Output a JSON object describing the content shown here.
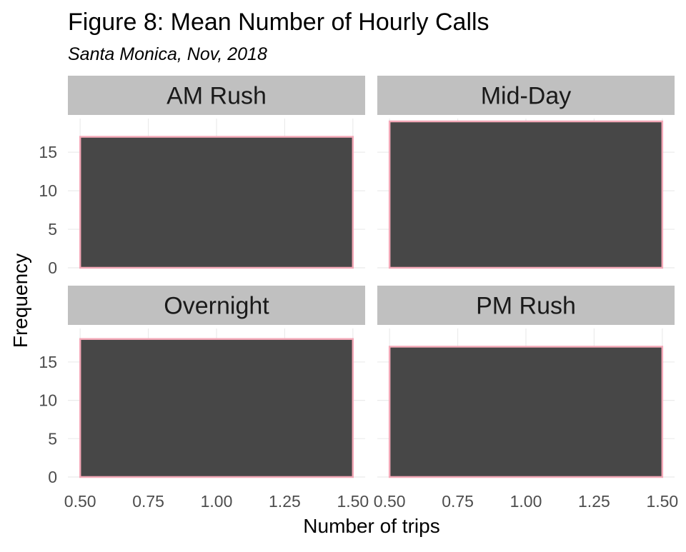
{
  "chart_data": {
    "type": "bar",
    "title": "Figure 8: Mean Number of Hourly Calls",
    "subtitle": "Santa Monica, Nov, 2018",
    "xlabel": "Number of trips",
    "ylabel": "Frequency",
    "xlim": [
      0.5,
      1.5
    ],
    "ylim": [
      0,
      19
    ],
    "x_ticks": [
      "0.50",
      "0.75",
      "1.00",
      "1.25",
      "1.50"
    ],
    "y_ticks": [
      0,
      5,
      10,
      15
    ],
    "grid": true,
    "colors": {
      "bar_fill": "#474747",
      "bar_outline": "#f4a9b8",
      "strip_background": "#c0c0c0",
      "grid": "#ebebeb"
    },
    "panels": [
      {
        "label": "AM Rush",
        "bins": [
          {
            "x_start": 0.5,
            "x_end": 1.5,
            "count": 17
          }
        ]
      },
      {
        "label": "Mid-Day",
        "bins": [
          {
            "x_start": 0.5,
            "x_end": 1.5,
            "count": 19
          }
        ]
      },
      {
        "label": "Overnight",
        "bins": [
          {
            "x_start": 0.5,
            "x_end": 1.5,
            "count": 18
          }
        ]
      },
      {
        "label": "PM Rush",
        "bins": [
          {
            "x_start": 0.5,
            "x_end": 1.5,
            "count": 17
          }
        ]
      }
    ]
  }
}
